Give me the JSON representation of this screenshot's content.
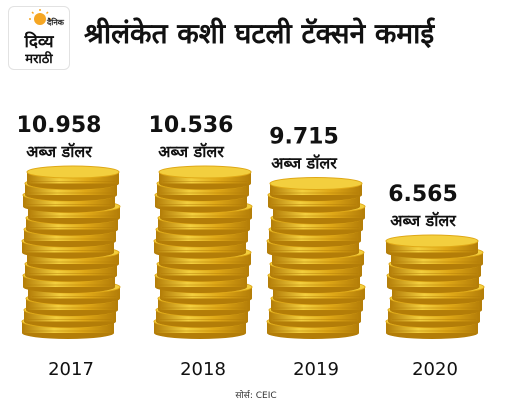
{
  "header": {
    "title": "श्रीलंकेत कशी घटली टॅक्सने कमाई",
    "logo_small": "दैनिक",
    "logo_line1": "दिव्य",
    "logo_line2": "मराठी"
  },
  "colors": {
    "coin_light": "#f3cf3e",
    "coin_mid": "#dfa817",
    "coin_dark": "#b37d08",
    "text": "#111111",
    "logo_sun": "#f5a623"
  },
  "chart_data": {
    "type": "bar",
    "categories": [
      "2017",
      "2018",
      "2019",
      "2020"
    ],
    "values": [
      10.958,
      10.536,
      9.715,
      6.565
    ],
    "value_labels": [
      "10.958",
      "10.536",
      "9.715",
      "6.565"
    ],
    "unit": "अब्ज डॉलर",
    "ylim": [
      0,
      11
    ],
    "grid": false,
    "legend": "none",
    "source": "सोर्स: CEIC"
  }
}
